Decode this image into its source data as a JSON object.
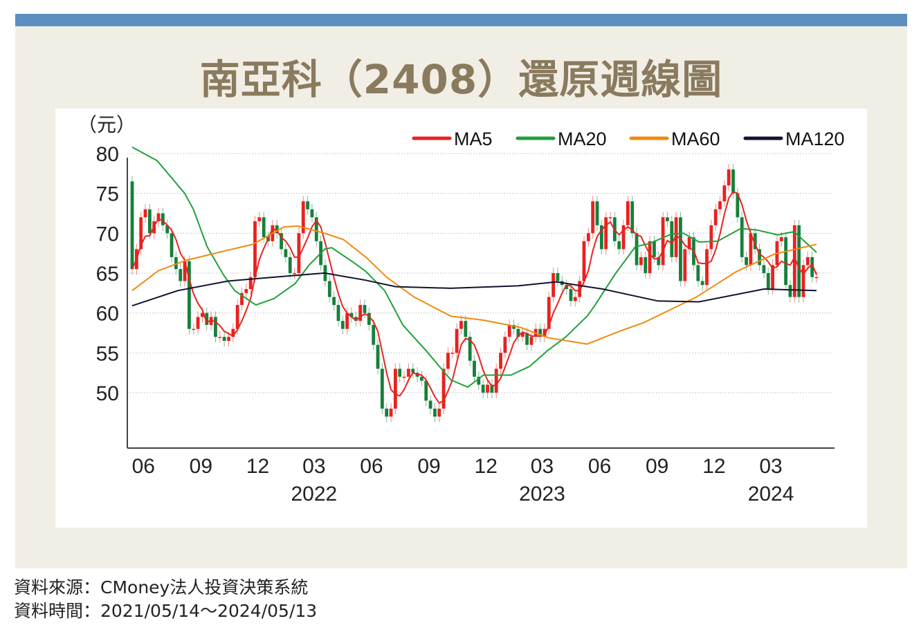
{
  "title": "南亞科（2408）還原週線圖",
  "footer": {
    "source": "資料來源：CMoney法人投資決策系統",
    "period": "資料時間：2021/05/14～2024/05/13"
  },
  "colors": {
    "up": "#e8221f",
    "down": "#16803a",
    "ma5": "#e8221f",
    "ma20": "#1fa038",
    "ma60": "#f08a0c",
    "ma120": "#111133",
    "header_bar": "#5b8fc0",
    "title": "#8a7a5e"
  },
  "chart_data": {
    "type": "candlestick",
    "unit_label": "（元）",
    "ylim": [
      44,
      80
    ],
    "yticks": [
      80,
      75,
      70,
      65,
      60,
      55,
      50
    ],
    "grid": true,
    "legend_placement": "top-right",
    "xticks": [
      {
        "label": "06",
        "date": "2021-06-01",
        "year": ""
      },
      {
        "label": "09",
        "date": "2021-09-01",
        "year": ""
      },
      {
        "label": "12",
        "date": "2021-12-01",
        "year": ""
      },
      {
        "label": "03",
        "date": "2022-03-01",
        "year": "2022"
      },
      {
        "label": "06",
        "date": "2022-06-01",
        "year": ""
      },
      {
        "label": "09",
        "date": "2022-09-01",
        "year": ""
      },
      {
        "label": "12",
        "date": "2022-12-01",
        "year": ""
      },
      {
        "label": "03",
        "date": "2023-03-01",
        "year": "2023"
      },
      {
        "label": "06",
        "date": "2023-06-01",
        "year": ""
      },
      {
        "label": "09",
        "date": "2023-09-01",
        "year": ""
      },
      {
        "label": "12",
        "date": "2023-12-01",
        "year": ""
      },
      {
        "label": "03",
        "date": "2024-03-01",
        "year": "2024"
      }
    ],
    "start_date": "2021-05-14",
    "end_date": "2024-05-13",
    "frequency": "weekly",
    "first_open": 76.5,
    "closes": [
      65.5,
      68,
      72,
      73,
      70,
      71.5,
      72.5,
      71,
      70,
      67,
      65.5,
      64,
      66.5,
      58,
      58,
      59.5,
      60,
      58.5,
      59.5,
      57,
      57,
      56.5,
      57,
      58,
      61,
      62.5,
      63,
      64.5,
      71.5,
      72,
      69.5,
      69,
      71,
      70,
      68,
      67,
      65,
      65,
      70,
      74,
      73,
      72,
      69,
      66,
      64,
      62,
      61,
      59,
      58,
      60,
      59.5,
      59,
      61,
      60,
      58.5,
      56,
      53,
      48,
      47,
      48,
      53,
      52,
      52,
      53,
      52.5,
      52,
      51.5,
      49,
      48,
      47,
      48,
      53,
      55,
      55,
      58,
      59,
      57,
      54,
      52,
      51,
      50,
      51,
      50,
      53,
      55,
      57,
      58.5,
      58,
      57,
      57.5,
      56,
      57,
      58,
      57,
      58,
      62,
      65,
      64,
      63.5,
      63,
      61.5,
      62,
      64,
      69,
      70,
      74,
      71,
      68,
      72,
      72,
      69,
      68,
      71,
      74,
      70,
      66,
      67,
      65,
      69,
      67,
      66,
      72,
      71.5,
      67,
      72,
      64,
      68,
      69.5,
      66,
      64,
      63.5,
      68,
      71,
      73,
      74,
      76,
      78,
      75,
      72,
      67,
      66,
      70,
      68,
      66,
      65,
      63,
      66,
      69,
      69.5,
      63.5,
      62,
      71,
      62,
      66,
      67,
      64.5,
      64.5
    ],
    "series": [
      {
        "name": "MA5",
        "computed_from": "closes",
        "window": 5
      },
      {
        "name": "MA20",
        "points": [
          [
            "2021-05-14",
            80.8
          ],
          [
            "2021-06-23",
            79.1
          ],
          [
            "2021-08-06",
            75
          ],
          [
            "2021-08-20",
            73
          ],
          [
            "2021-09-11",
            68.3
          ],
          [
            "2021-10-07",
            64.8
          ],
          [
            "2021-10-25",
            62.8
          ],
          [
            "2021-11-28",
            61
          ],
          [
            "2021-12-27",
            61.8
          ],
          [
            "2022-01-30",
            63.7
          ],
          [
            "2022-02-21",
            66
          ],
          [
            "2022-03-18",
            68
          ],
          [
            "2022-03-29",
            68.2
          ],
          [
            "2022-05-04",
            66.3
          ],
          [
            "2022-05-23",
            65.2
          ],
          [
            "2022-06-22",
            62.8
          ],
          [
            "2022-07-21",
            58.5
          ],
          [
            "2022-08-27",
            55.3
          ],
          [
            "2022-10-06",
            51.6
          ],
          [
            "2022-11-02",
            50.7
          ],
          [
            "2022-11-27",
            52.2
          ],
          [
            "2023-01-10",
            52.2
          ],
          [
            "2023-02-09",
            53.3
          ],
          [
            "2023-03-10",
            55.3
          ],
          [
            "2023-04-08",
            57
          ],
          [
            "2023-05-12",
            59.6
          ],
          [
            "2023-05-23",
            60.8
          ],
          [
            "2023-06-25",
            64.8
          ],
          [
            "2023-07-28",
            68.3
          ],
          [
            "2023-08-19",
            68.7
          ],
          [
            "2023-09-24",
            69.9
          ],
          [
            "2023-10-13",
            70
          ],
          [
            "2023-11-07",
            68.9
          ],
          [
            "2023-12-07",
            69
          ],
          [
            "2024-01-13",
            70.6
          ],
          [
            "2024-02-08",
            70.4
          ],
          [
            "2024-03-12",
            69.8
          ],
          [
            "2024-04-07",
            70.2
          ],
          [
            "2024-05-13",
            67.6
          ]
        ]
      },
      {
        "name": "MA60",
        "points": [
          [
            "2021-05-14",
            62.8
          ],
          [
            "2021-06-25",
            65.3
          ],
          [
            "2021-08-08",
            66.6
          ],
          [
            "2021-10-10",
            67.8
          ],
          [
            "2021-11-23",
            68.6
          ],
          [
            "2022-01-12",
            70.8
          ],
          [
            "2022-02-03",
            70.9
          ],
          [
            "2022-03-18",
            70
          ],
          [
            "2022-04-17",
            69.2
          ],
          [
            "2022-05-23",
            67
          ],
          [
            "2022-06-25",
            64.5
          ],
          [
            "2022-08-08",
            62
          ],
          [
            "2022-10-06",
            59.6
          ],
          [
            "2022-11-27",
            59.1
          ],
          [
            "2023-01-25",
            58.2
          ],
          [
            "2023-03-10",
            56.9
          ],
          [
            "2023-05-12",
            56.1
          ],
          [
            "2023-07-06",
            57.8
          ],
          [
            "2023-08-11",
            58.8
          ],
          [
            "2023-11-03",
            62
          ],
          [
            "2024-01-06",
            65.2
          ],
          [
            "2024-03-07",
            67.4
          ],
          [
            "2024-05-13",
            68.6
          ]
        ]
      },
      {
        "name": "MA120",
        "points": [
          [
            "2021-05-14",
            60.9
          ],
          [
            "2021-07-26",
            62.8
          ],
          [
            "2021-10-14",
            64
          ],
          [
            "2022-01-12",
            64.6
          ],
          [
            "2022-03-18",
            65
          ],
          [
            "2022-05-23",
            64.1
          ],
          [
            "2022-07-10",
            63.3
          ],
          [
            "2022-10-06",
            63.1
          ],
          [
            "2023-01-21",
            63.4
          ],
          [
            "2023-03-24",
            63.9
          ],
          [
            "2023-05-12",
            63.3
          ],
          [
            "2023-06-06",
            63
          ],
          [
            "2023-09-02",
            61.5
          ],
          [
            "2023-11-07",
            61.4
          ],
          [
            "2024-02-19",
            63
          ],
          [
            "2024-05-13",
            62.8
          ]
        ]
      }
    ]
  }
}
